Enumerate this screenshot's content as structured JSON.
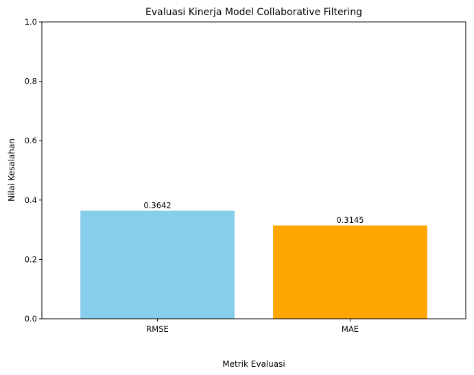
{
  "chart_data": {
    "type": "bar",
    "title": "Evaluasi Kinerja Model Collaborative Filtering",
    "xlabel": "Metrik Evaluasi",
    "ylabel": "Nilai Kesalahan",
    "ylim": [
      0,
      1
    ],
    "yticks": [
      0.0,
      0.2,
      0.4,
      0.6,
      0.8,
      1.0
    ],
    "ytick_labels": [
      "0.0",
      "0.2",
      "0.4",
      "0.6",
      "0.8",
      "1.0"
    ],
    "grid": false,
    "categories": [
      "RMSE",
      "MAE"
    ],
    "values": [
      0.3642,
      0.3145
    ],
    "data_labels": [
      "0.3642",
      "0.3145"
    ],
    "colors": [
      "#87ceeb",
      "#ffa500"
    ]
  }
}
